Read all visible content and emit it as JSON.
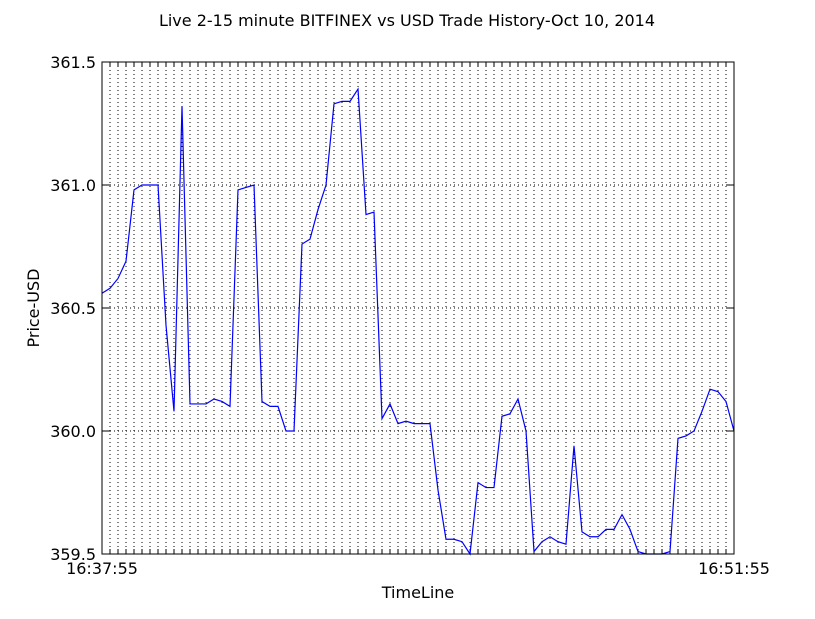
{
  "chart_data": {
    "type": "line",
    "title": "Live 2-15 minute BITFINEX vs USD Trade History-Oct 10, 2014",
    "xlabel": "TimeLine",
    "ylabel": "Price-USD",
    "ylim": [
      359.5,
      361.5
    ],
    "yticks": [
      "359.5",
      "360.0",
      "360.5",
      "361.0",
      "361.5"
    ],
    "x_start_label": "16:37:55",
    "x_end_label": "16:51:55",
    "grid": true,
    "line_color": "#0000ff",
    "series": [
      {
        "values": [
          360.56,
          360.58,
          360.62,
          360.69,
          360.98,
          361.0,
          361.0,
          361.0,
          360.43,
          360.08,
          361.32,
          360.11,
          360.11,
          360.11,
          360.13,
          360.12,
          360.1,
          360.98,
          360.99,
          361.0,
          360.12,
          360.1,
          360.1,
          360.0,
          360.0,
          360.76,
          360.78,
          360.9,
          361.0,
          361.33,
          361.34,
          361.34,
          361.39,
          360.88,
          360.89,
          360.05,
          360.11,
          360.03,
          360.04,
          360.03,
          360.03,
          360.03,
          359.76,
          359.56,
          359.56,
          359.55,
          359.5,
          359.79,
          359.77,
          359.77,
          360.06,
          360.07,
          360.13,
          360.0,
          359.51,
          359.55,
          359.57,
          359.55,
          359.54,
          359.94,
          359.59,
          359.57,
          359.57,
          359.6,
          359.6,
          359.66,
          359.6,
          359.51,
          359.5,
          359.5,
          359.5,
          359.51,
          359.97,
          359.98,
          360.0,
          360.08,
          360.17,
          360.16,
          360.12,
          360.0
        ]
      }
    ]
  }
}
